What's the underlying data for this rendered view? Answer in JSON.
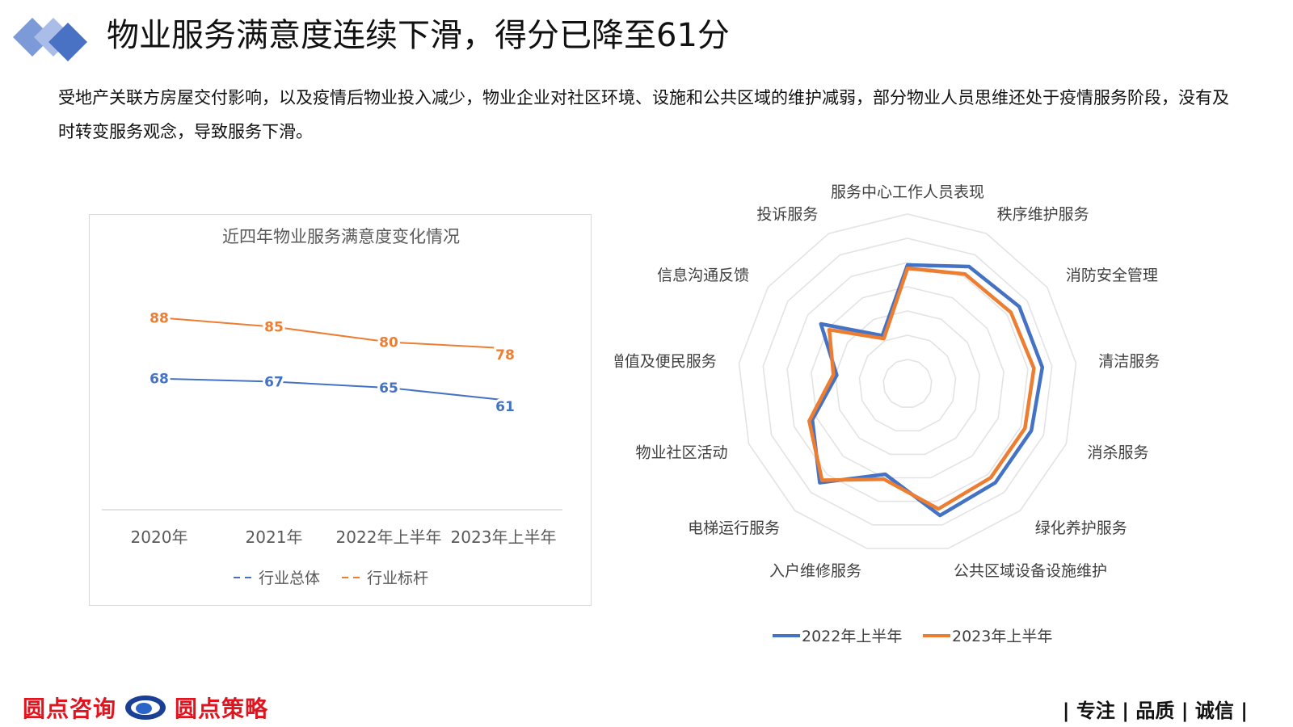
{
  "header": {
    "title": "物业服务满意度连续下滑，得分已降至61分",
    "logo_icon": "diamond-logo-icon",
    "logo_colors": [
      "#4a72c4",
      "#7d9ad8",
      "#a9bde8"
    ]
  },
  "intro": {
    "text": "受地产关联方房屋交付影响，以及疫情后物业投入减少，物业企业对社区环境、设施和公共区域的维护减弱，部分物业人员思维还处于疫情服务阶段，没有及时转变服务观念，导致服务下滑。"
  },
  "chart_data": [
    {
      "type": "line",
      "title": "近四年物业服务满意度变化情况",
      "categories": [
        "2020年",
        "2021年",
        "2022年上半年",
        "2023年上半年"
      ],
      "series": [
        {
          "name": "行业总体",
          "values": [
            68,
            67,
            65,
            61
          ],
          "color": "#4472c4"
        },
        {
          "name": "行业标杆",
          "values": [
            88,
            85,
            80,
            78
          ],
          "color": "#ed7d31"
        }
      ],
      "ylim": [
        25,
        100
      ],
      "grid": false,
      "legend": "bottom",
      "data_labels": true
    },
    {
      "type": "radar",
      "categories": [
        "服务中心工作人员表现",
        "秩序维护服务",
        "消防安全管理",
        "清洁服务",
        "消杀服务",
        "绿化养护服务",
        "公共区域设备设施维护",
        "入户维修服务",
        "电梯运行服务",
        "物业社区活动",
        "增值及便民服务",
        "信息沟通反馈",
        "投诉服务"
      ],
      "series": [
        {
          "name": "2022年上半年",
          "values": [
            70,
            78,
            80,
            80,
            78,
            78,
            80,
            55,
            78,
            60,
            42,
            62,
            32
          ],
          "color": "#4472c4"
        },
        {
          "name": "2023年上半年",
          "values": [
            68,
            73,
            74,
            75,
            74,
            74,
            76,
            58,
            76,
            62,
            44,
            56,
            30
          ],
          "color": "#ed7d31"
        }
      ],
      "rlim": [
        0,
        100
      ],
      "rings": 7,
      "grid": true,
      "legend": "bottom"
    }
  ],
  "footer": {
    "brand_left": "圆点咨询",
    "brand_right": "圆点策略",
    "brand_color": "#e0141e",
    "brand_icon": "circle-dot-logo-icon",
    "motto": "| 专注 | 品质 | 诚信 |"
  }
}
